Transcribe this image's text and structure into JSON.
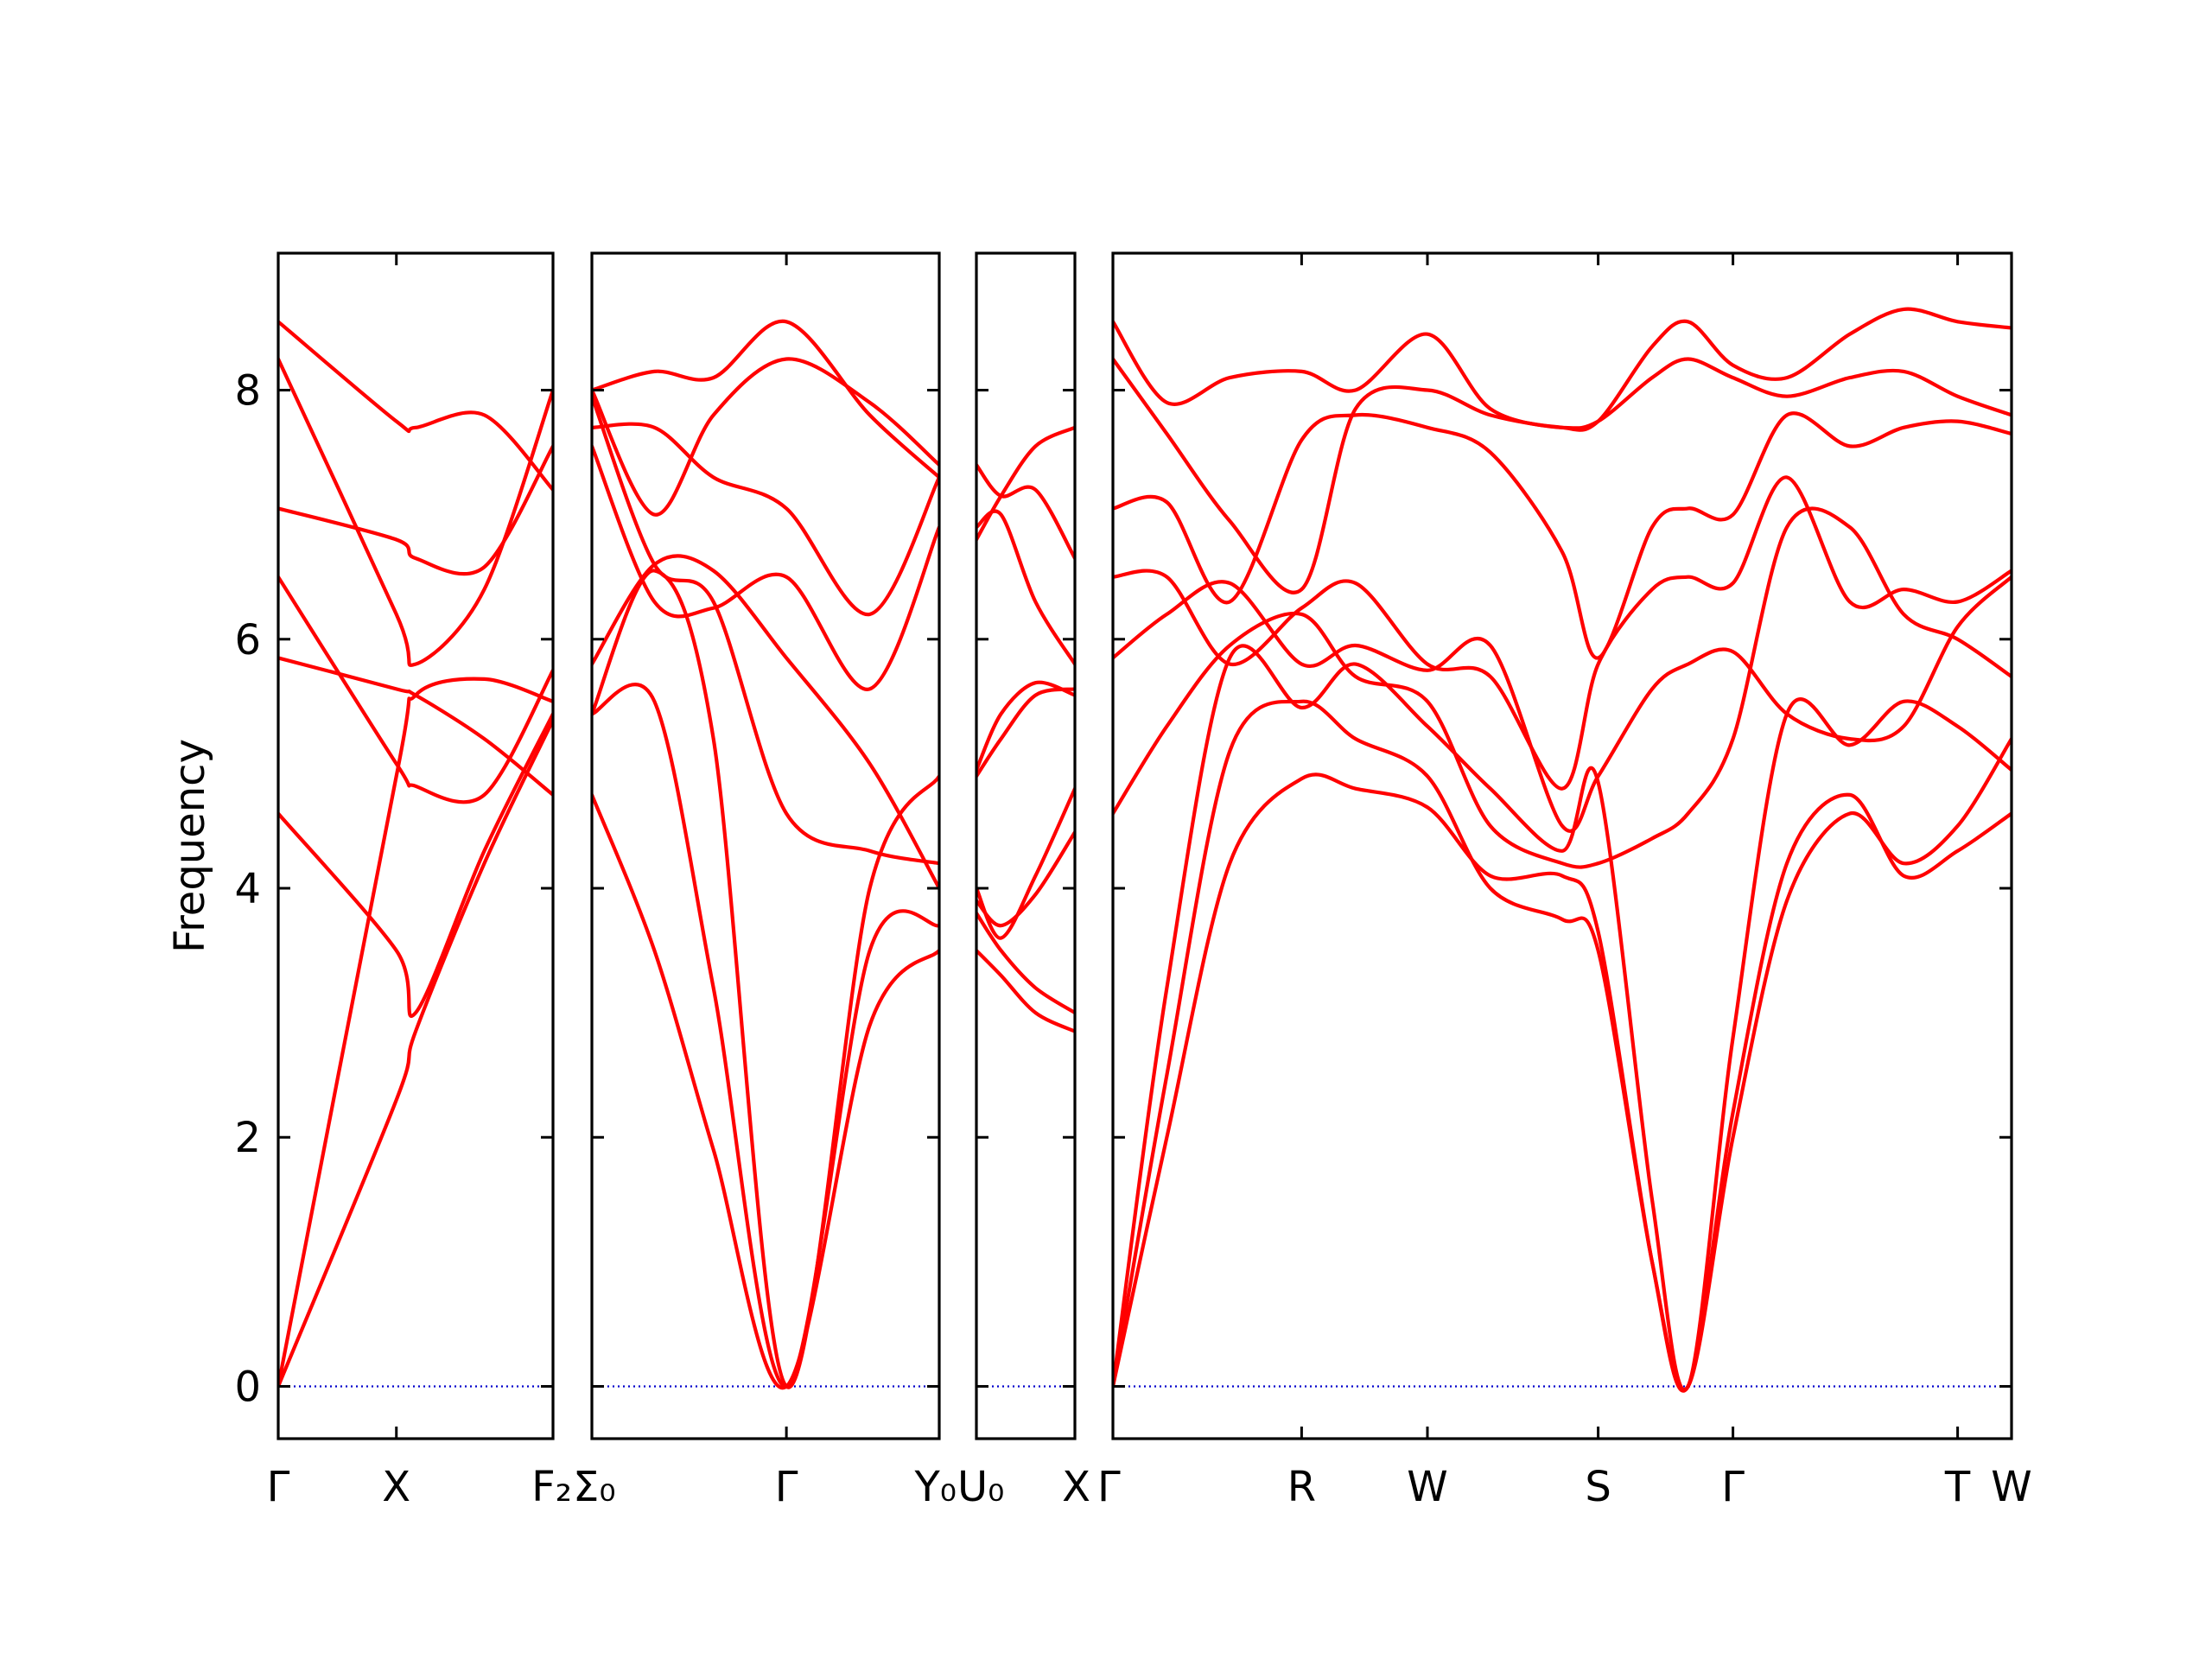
{
  "chart_data": {
    "type": "line",
    "ylabel": "Frequency",
    "ylim": [
      -0.42,
      9.1
    ],
    "yticks": [
      0,
      2,
      4,
      6,
      8
    ],
    "grid": false,
    "colors": {
      "bands": "#ff0000",
      "zero_line": "#0000cc",
      "frame": "#000000"
    },
    "panels": [
      {
        "name": "panel-1",
        "ticks": [
          "Γ",
          "X",
          "F₂"
        ],
        "x": [
          0,
          0.43,
          0.5,
          0.75,
          1
        ],
        "series": [
          {
            "values": [
              0,
              4.9,
              5.55,
              5.68,
              5.5
            ]
          },
          {
            "values": [
              0,
              2.3,
              2.85,
              4.2,
              5.35
            ]
          },
          {
            "values": [
              4.6,
              3.5,
              3.0,
              4.3,
              5.4
            ]
          },
          {
            "values": [
              5.85,
              5.6,
              5.55,
              5.2,
              4.75
            ]
          },
          {
            "values": [
              6.5,
              5.0,
              4.82,
              4.75,
              5.75
            ]
          },
          {
            "values": [
              7.05,
              6.8,
              6.65,
              6.58,
              7.55
            ]
          },
          {
            "values": [
              8.25,
              6.2,
              5.8,
              6.4,
              8.0
            ]
          },
          {
            "values": [
              8.55,
              7.75,
              7.7,
              7.8,
              7.2
            ]
          }
        ]
      },
      {
        "name": "panel-2",
        "ticks": [
          "Σ₀",
          "Γ",
          "Y₀"
        ],
        "x": [
          0,
          0.18,
          0.35,
          0.56,
          0.8,
          1
        ],
        "series": [
          {
            "values": [
              4.75,
              3.5,
              1.9,
              0,
              2.9,
              3.5
            ]
          },
          {
            "values": [
              5.4,
              5.5,
              3.2,
              0,
              3.5,
              3.7
            ]
          },
          {
            "values": [
              5.4,
              6.55,
              5.2,
              0,
              4.0,
              4.9
            ]
          },
          {
            "values": [
              5.8,
              6.6,
              6.55,
              5.85,
              5.0,
              4.0
            ]
          },
          {
            "values": [
              7.55,
              6.3,
              6.25,
              6.5,
              5.6,
              6.9
            ]
          },
          {
            "values": [
              7.95,
              6.6,
              6.3,
              4.6,
              4.3,
              4.2
            ]
          },
          {
            "values": [
              7.7,
              7.7,
              7.3,
              7.05,
              6.2,
              7.3
            ]
          },
          {
            "values": [
              8.0,
              8.15,
              8.1,
              8.55,
              7.8,
              7.3
            ]
          },
          {
            "values": [
              8.0,
              7.0,
              7.8,
              8.25,
              7.9,
              7.4
            ]
          }
        ]
      },
      {
        "name": "panel-3",
        "ticks": [
          "U₀",
          "X"
        ],
        "x": [
          0,
          0.25,
          0.6,
          1
        ],
        "series": [
          {
            "values": [
              3.5,
              3.3,
              3.0,
              2.85
            ]
          },
          {
            "values": [
              3.8,
              3.5,
              3.2,
              3.0
            ]
          },
          {
            "values": [
              4.0,
              3.6,
              4.1,
              4.8
            ]
          },
          {
            "values": [
              3.9,
              3.7,
              3.95,
              4.45
            ]
          },
          {
            "values": [
              4.9,
              5.2,
              5.55,
              5.6
            ]
          },
          {
            "values": [
              4.95,
              5.4,
              5.65,
              5.55
            ]
          },
          {
            "values": [
              6.9,
              7.0,
              6.3,
              5.8
            ]
          },
          {
            "values": [
              7.4,
              7.15,
              7.2,
              6.65
            ]
          },
          {
            "values": [
              6.8,
              7.15,
              7.55,
              7.7
            ]
          }
        ]
      },
      {
        "name": "panel-4",
        "ticks": [
          "Γ",
          "R",
          "W",
          "S",
          "Γ",
          "T",
          "W"
        ],
        "x": [
          0,
          0.06,
          0.13,
          0.21,
          0.27,
          0.35,
          0.42,
          0.5,
          0.54,
          0.6,
          0.64,
          0.69,
          0.75,
          0.82,
          0.88,
          0.94,
          1
        ],
        "series": [
          {
            "values": [
              0,
              2.0,
              4.2,
              4.88,
              4.8,
              4.65,
              4.1,
              4.1,
              3.65,
              1.0,
              0,
              2.2,
              4.2,
              4.75,
              4.1,
              4.3,
              4.6
            ]
          },
          {
            "values": [
              0,
              2.5,
              5.1,
              5.5,
              5.2,
              4.9,
              4.0,
              3.75,
              3.5,
              1.0,
              0,
              2.0,
              3.9,
              4.6,
              4.2,
              4.5,
              5.2
            ]
          },
          {
            "values": [
              0,
              3.2,
              5.85,
              5.45,
              5.8,
              5.3,
              4.8,
              4.3,
              4.85,
              1.5,
              0,
              2.8,
              5.4,
              5.15,
              5.5,
              5.3,
              4.95
            ]
          },
          {
            "values": [
              4.6,
              5.3,
              5.95,
              6.2,
              5.7,
              5.5,
              4.5,
              4.2,
              4.2,
              4.4,
              4.6,
              5.2,
              6.9,
              6.9,
              6.2,
              6.0,
              5.7
            ]
          },
          {
            "values": [
              5.85,
              6.2,
              6.45,
              5.8,
              5.95,
              5.75,
              5.95,
              4.5,
              4.9,
              5.6,
              5.8,
              5.9,
              5.4,
              5.2,
              5.3,
              6.1,
              6.5
            ]
          },
          {
            "values": [
              6.5,
              6.5,
              5.8,
              6.25,
              6.45,
              5.8,
              5.7,
              4.8,
              5.8,
              6.4,
              6.5,
              6.45,
              7.3,
              6.3,
              6.4,
              6.3,
              6.55
            ]
          },
          {
            "values": [
              7.05,
              7.1,
              6.3,
              7.6,
              7.8,
              7.7,
              7.5,
              6.7,
              5.85,
              6.9,
              7.05,
              7.0,
              7.8,
              7.55,
              7.7,
              7.75,
              7.65
            ]
          },
          {
            "values": [
              8.25,
              7.65,
              6.95,
              6.4,
              7.85,
              8.0,
              7.8,
              7.7,
              7.75,
              8.1,
              8.25,
              8.1,
              7.95,
              8.1,
              8.15,
              7.95,
              7.8
            ]
          },
          {
            "values": [
              8.55,
              7.9,
              8.1,
              8.15,
              8.0,
              8.45,
              7.85,
              7.7,
              7.75,
              8.35,
              8.55,
              8.2,
              8.1,
              8.45,
              8.65,
              8.55,
              8.5
            ]
          }
        ]
      }
    ]
  }
}
